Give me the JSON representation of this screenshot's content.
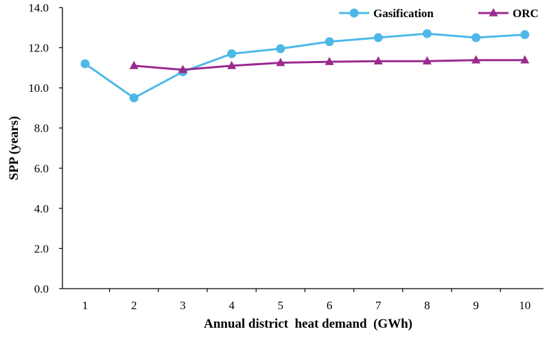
{
  "chart_data": {
    "type": "line",
    "xlabel": "Annual district  heat demand  (GWh)",
    "ylabel": "SPP (years)",
    "x": [
      1,
      2,
      3,
      4,
      5,
      6,
      7,
      8,
      9,
      10
    ],
    "ylim": [
      0,
      14
    ],
    "yticks": [
      "0.0",
      "2.0",
      "4.0",
      "6.0",
      "8.0",
      "10.0",
      "12.0",
      "14.0"
    ],
    "grid": false,
    "legend_position": "top-right",
    "series": [
      {
        "name": "Gasification",
        "color": "#4db8e8",
        "marker": "circle",
        "values": [
          11.2,
          9.5,
          10.8,
          11.7,
          11.95,
          12.3,
          12.5,
          12.7,
          12.5,
          12.65
        ]
      },
      {
        "name": "ORC",
        "color": "#9b2a8e",
        "marker": "triangle",
        "values": [
          null,
          11.1,
          10.9,
          11.1,
          11.25,
          11.3,
          11.33,
          11.33,
          11.38,
          11.38
        ]
      }
    ]
  }
}
